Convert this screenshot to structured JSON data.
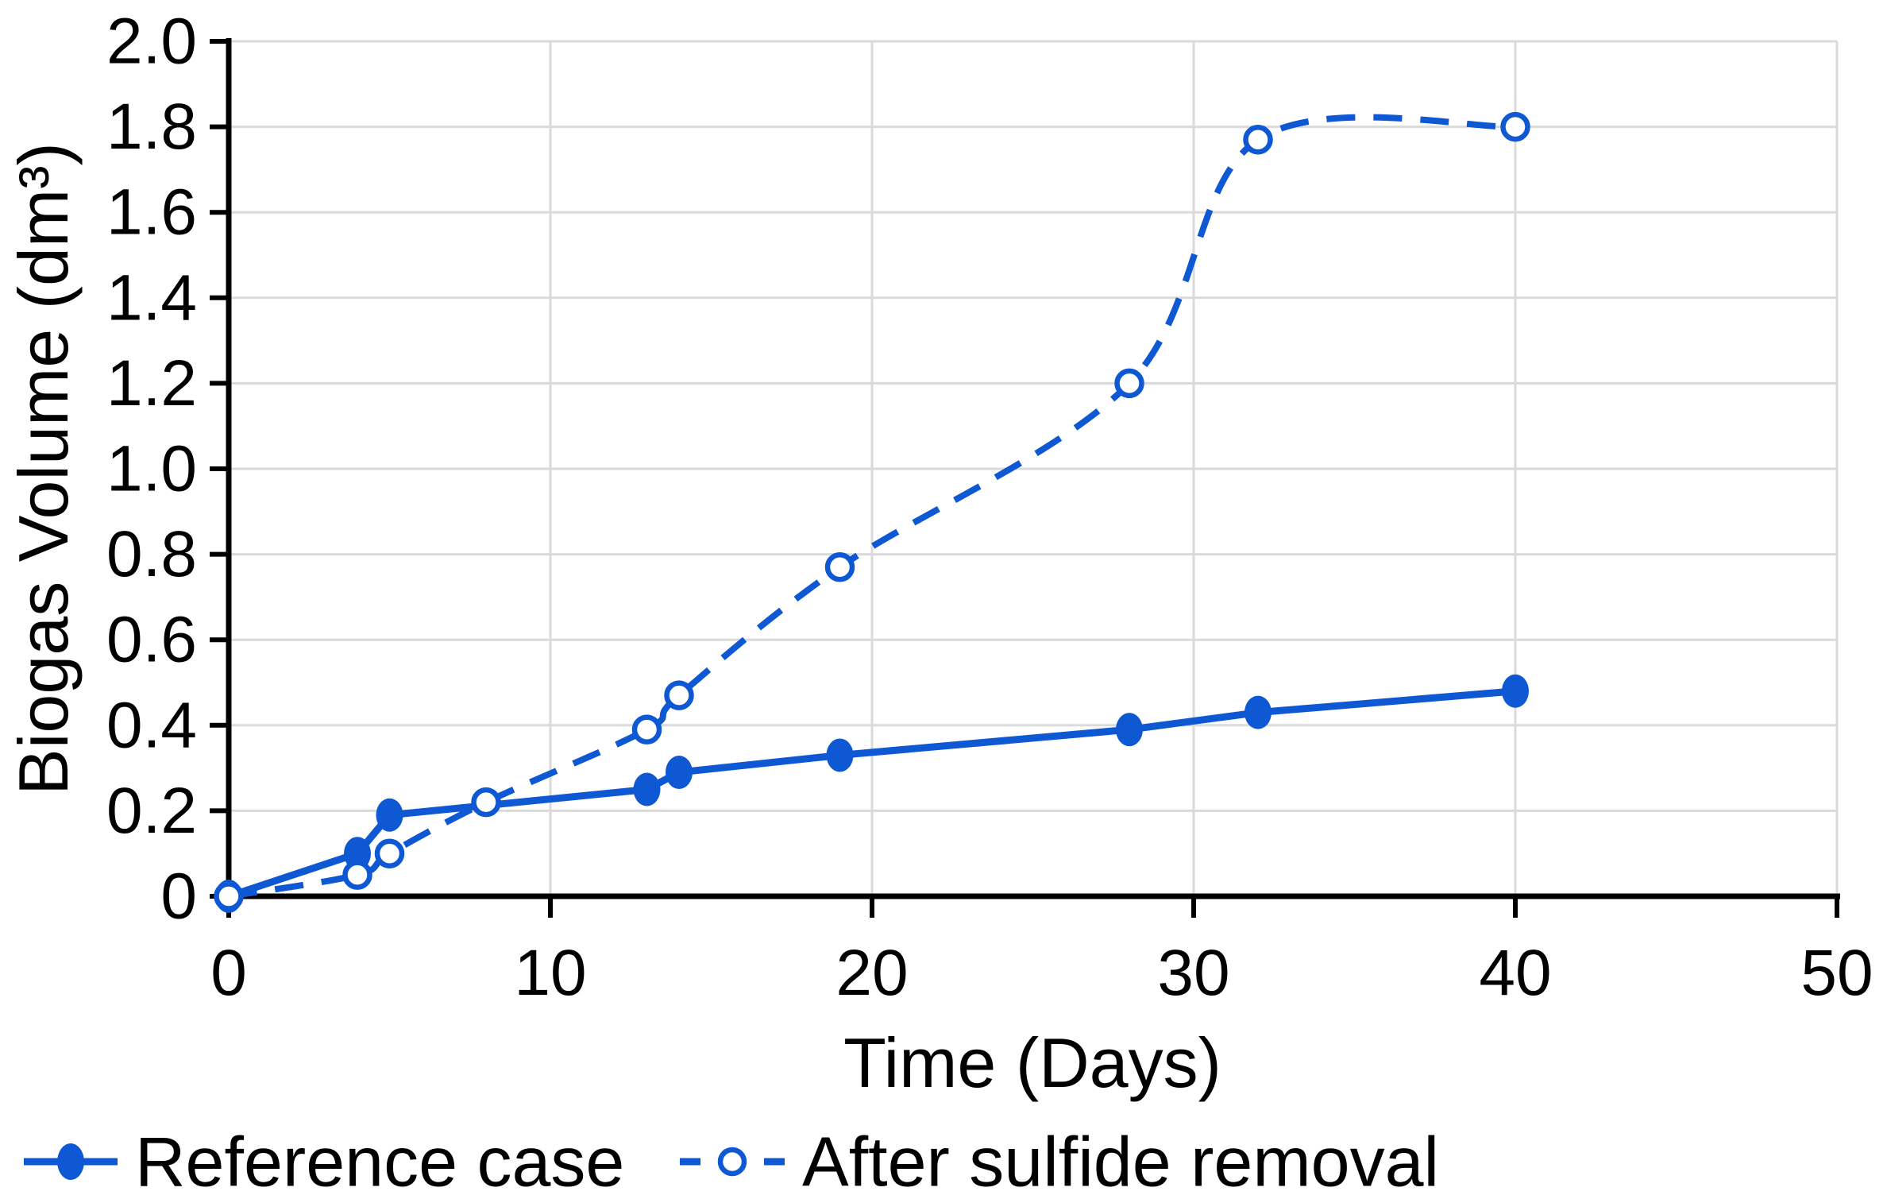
{
  "chart_data": {
    "type": "line",
    "title": "",
    "xlabel": "Time (Days)",
    "ylabel": "Biogas Volume (dm³)",
    "xlim": [
      0,
      50
    ],
    "ylim": [
      0,
      2.0
    ],
    "xticks": [
      0,
      10,
      20,
      30,
      40,
      50
    ],
    "yticks": [
      0,
      0.2,
      0.4,
      0.6,
      0.8,
      1.0,
      1.2,
      1.4,
      1.6,
      1.8,
      2.0
    ],
    "ytick_labels": [
      "0",
      "0.2",
      "0.4",
      "0.6",
      "0.8",
      "1.0",
      "1.2",
      "1.4",
      "1.6",
      "1.8",
      "2.0"
    ],
    "grid": true,
    "legend_position": "bottom-left",
    "series": [
      {
        "name": "Reference case",
        "line_style": "solid",
        "marker": "filled-circle",
        "smooth": false,
        "x": [
          0,
          4,
          5,
          13,
          14,
          19,
          28,
          32,
          40
        ],
        "y": [
          0,
          0.1,
          0.19,
          0.25,
          0.29,
          0.33,
          0.39,
          0.43,
          0.48
        ]
      },
      {
        "name": "After sulfide removal",
        "line_style": "dashed",
        "marker": "open-circle",
        "smooth": true,
        "x": [
          0,
          4,
          5,
          8,
          13,
          14,
          19,
          28,
          32,
          40
        ],
        "y": [
          0,
          0.05,
          0.1,
          0.22,
          0.39,
          0.47,
          0.77,
          1.2,
          1.77,
          1.8
        ]
      }
    ],
    "colors": {
      "series": "#0e58d4",
      "grid": "#dadada",
      "axis": "#000000",
      "background": "#ffffff"
    }
  }
}
